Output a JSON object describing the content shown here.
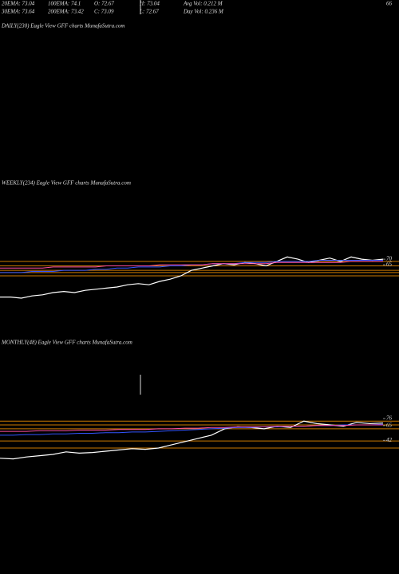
{
  "header": {
    "row1": [
      "20EMA: 73.04",
      "100EMA: 74.1",
      "O: 72.67",
      "H: 73.04",
      "Avg Vol: 0.212  M"
    ],
    "row2": [
      "30EMA: 73.64",
      "200EMA: 73.42",
      "C: 73.09",
      "L: 72.67",
      "Day Vol: 0.236  M"
    ],
    "corner": "66"
  },
  "daily_label": "DAILY(230) Eagle  View  GFF charts MunafaSutra.com",
  "chart_data": [
    {
      "type": "line",
      "title": "WEEKLY(234) Eagle  View  GFF charts MunafaSutra.com",
      "ylim": [
        2,
        131
      ],
      "yticks": [
        70,
        65
      ],
      "levels": [
        68,
        64,
        60,
        58,
        55
      ],
      "level_color": "#cc7a00",
      "series": [
        {
          "color": "#ffffff",
          "values": [
            36,
            36,
            35,
            37,
            38,
            40,
            41,
            40,
            42,
            43,
            44,
            45,
            47,
            48,
            47,
            50,
            52,
            55,
            60,
            62,
            64,
            66,
            65,
            67,
            66,
            64,
            68,
            72,
            70,
            67,
            69,
            71,
            68,
            72,
            70,
            69,
            70
          ]
        },
        {
          "color": "#3355ff",
          "values": [
            58,
            58,
            58,
            59,
            59,
            59,
            60,
            60,
            60,
            61,
            61,
            62,
            62,
            63,
            63,
            63,
            64,
            64,
            65,
            65,
            66,
            66,
            66,
            67,
            67,
            67,
            68,
            68,
            68,
            68,
            69,
            69,
            69,
            69,
            69,
            69,
            69
          ]
        },
        {
          "color": "#ff4fa0",
          "values": [
            62,
            62,
            62,
            62,
            62,
            63,
            63,
            63,
            63,
            63,
            64,
            64,
            64,
            64,
            64,
            65,
            65,
            65,
            65,
            65,
            66,
            66,
            66,
            66,
            66,
            66,
            67,
            67,
            67,
            67,
            67,
            67,
            67,
            68,
            68,
            68,
            68
          ]
        }
      ]
    },
    {
      "type": "line",
      "title": "MONTHLY(48) Eagle  View  GFF charts MunafaSutra.com",
      "ylim": [
        -36,
        188
      ],
      "yticks": [
        76,
        65,
        42
      ],
      "levels": [
        72,
        66,
        60,
        41,
        30
      ],
      "level_color": "#cc7a00",
      "series": [
        {
          "color": "#ffffff",
          "values": [
            14,
            13,
            16,
            18,
            20,
            24,
            22,
            23,
            25,
            27,
            29,
            28,
            30,
            35,
            40,
            45,
            50,
            60,
            63,
            62,
            60,
            64,
            62,
            72,
            68,
            66,
            64,
            70,
            68,
            69
          ]
        },
        {
          "color": "#3355ff",
          "values": [
            50,
            50,
            51,
            51,
            52,
            52,
            53,
            53,
            54,
            54,
            55,
            55,
            56,
            57,
            58,
            59,
            60,
            61,
            62,
            62,
            63,
            63,
            64,
            64,
            65,
            65,
            66,
            66,
            66,
            67
          ]
        },
        {
          "color": "#ff4fa0",
          "values": [
            56,
            56,
            56,
            57,
            57,
            57,
            58,
            58,
            58,
            59,
            59,
            59,
            60,
            60,
            61,
            61,
            62,
            62,
            63,
            63,
            63,
            64,
            64,
            64,
            65,
            65,
            65,
            66,
            66,
            66
          ]
        }
      ]
    }
  ]
}
